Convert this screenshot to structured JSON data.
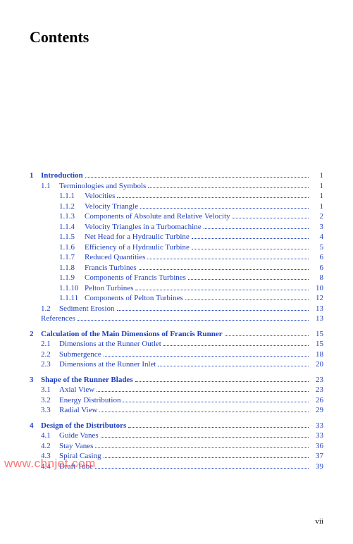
{
  "colors": {
    "link": "#1f3fbf",
    "text": "#000000",
    "background": "#ffffff",
    "watermark": "#ff3030"
  },
  "typography": {
    "heading_fontsize_pt": 16,
    "body_fontsize_pt": 8,
    "font_family": "Times New Roman"
  },
  "heading": "Contents",
  "watermark": "www.chnjet.com",
  "page_number": "vii",
  "toc": [
    {
      "type": "chapter",
      "num": "1",
      "title": "Introduction",
      "page": "1",
      "bold": true
    },
    {
      "type": "section",
      "num": "1.1",
      "title": "Terminologies and Symbols",
      "page": "1"
    },
    {
      "type": "subsection",
      "num": "1.1.1",
      "title": "Velocities",
      "page": "1"
    },
    {
      "type": "subsection",
      "num": "1.1.2",
      "title": "Velocity Triangle",
      "page": "1"
    },
    {
      "type": "subsection",
      "num": "1.1.3",
      "title": "Components of Absolute and Relative Velocity",
      "page": "2"
    },
    {
      "type": "subsection",
      "num": "1.1.4",
      "title": "Velocity Triangles in a Turbomachine",
      "page": "3"
    },
    {
      "type": "subsection",
      "num": "1.1.5",
      "title": "Net Head for a Hydraulic Turbine",
      "page": "4"
    },
    {
      "type": "subsection",
      "num": "1.1.6",
      "title": "Efficiency of a Hydraulic Turbine",
      "page": "5"
    },
    {
      "type": "subsection",
      "num": "1.1.7",
      "title": "Reduced Quantities",
      "page": "6"
    },
    {
      "type": "subsection",
      "num": "1.1.8",
      "title": "Francis Turbines",
      "page": "6"
    },
    {
      "type": "subsection",
      "num": "1.1.9",
      "title": "Components of Francis Turbines",
      "page": "8"
    },
    {
      "type": "subsection",
      "num": "1.1.10",
      "title": "Pelton Turbines",
      "page": "10"
    },
    {
      "type": "subsection",
      "num": "1.1.11",
      "title": "Components of Pelton Turbines",
      "page": "12"
    },
    {
      "type": "section",
      "num": "1.2",
      "title": "Sediment Erosion",
      "page": "13"
    },
    {
      "type": "plain",
      "num": "",
      "title": "References",
      "page": "13"
    },
    {
      "type": "gap"
    },
    {
      "type": "chapter",
      "num": "2",
      "title": "Calculation of the Main Dimensions of Francis Runner",
      "page": "15",
      "bold": true
    },
    {
      "type": "section",
      "num": "2.1",
      "title": "Dimensions at the Runner Outlet",
      "page": "15"
    },
    {
      "type": "section",
      "num": "2.2",
      "title": "Submergence",
      "page": "18"
    },
    {
      "type": "section",
      "num": "2.3",
      "title": "Dimensions at the Runner Inlet",
      "page": "20"
    },
    {
      "type": "gap"
    },
    {
      "type": "chapter",
      "num": "3",
      "title": "Shape of the Runner Blades",
      "page": "23",
      "bold": true
    },
    {
      "type": "section",
      "num": "3.1",
      "title": "Axial View",
      "page": "23"
    },
    {
      "type": "section",
      "num": "3.2",
      "title": "Energy Distribution",
      "page": "26"
    },
    {
      "type": "section",
      "num": "3.3",
      "title": "Radial View",
      "page": "29"
    },
    {
      "type": "gap"
    },
    {
      "type": "chapter",
      "num": "4",
      "title": "Design of the Distributors",
      "page": "33",
      "bold": true
    },
    {
      "type": "section",
      "num": "4.1",
      "title": "Guide Vanes",
      "page": "33"
    },
    {
      "type": "section",
      "num": "4.2",
      "title": "Stay Vanes",
      "page": "36"
    },
    {
      "type": "section",
      "num": "4.3",
      "title": "Spiral Casing",
      "page": "37"
    },
    {
      "type": "section",
      "num": "4.4",
      "title": "Draft Tube",
      "page": "39"
    }
  ]
}
